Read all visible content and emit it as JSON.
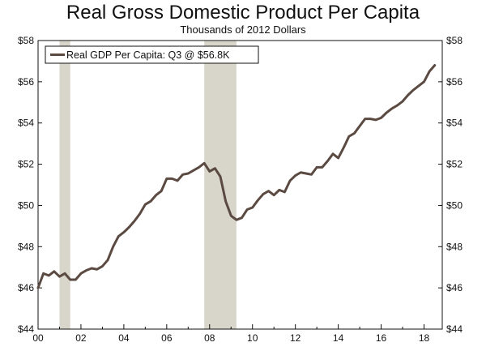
{
  "chart_data": {
    "type": "line",
    "title": "Real Gross Domestic Product Per Capita",
    "subtitle": "Thousands of 2012 Dollars",
    "xlabel": "",
    "ylabel": "",
    "xlim": [
      2000.0,
      2018.85
    ],
    "ylim": [
      44,
      58
    ],
    "x_ticks": [
      {
        "value": 2000,
        "label": "00"
      },
      {
        "value": 2002,
        "label": "02"
      },
      {
        "value": 2004,
        "label": "04"
      },
      {
        "value": 2006,
        "label": "06"
      },
      {
        "value": 2008,
        "label": "08"
      },
      {
        "value": 2010,
        "label": "10"
      },
      {
        "value": 2012,
        "label": "12"
      },
      {
        "value": 2014,
        "label": "14"
      },
      {
        "value": 2016,
        "label": "16"
      },
      {
        "value": 2018,
        "label": "18"
      }
    ],
    "y_ticks": [
      {
        "value": 44,
        "label": "$44"
      },
      {
        "value": 46,
        "label": "$46"
      },
      {
        "value": 48,
        "label": "$48"
      },
      {
        "value": 50,
        "label": "$50"
      },
      {
        "value": 52,
        "label": "$52"
      },
      {
        "value": 54,
        "label": "$54"
      },
      {
        "value": 56,
        "label": "$56"
      },
      {
        "value": 58,
        "label": "$58"
      }
    ],
    "right_axis": true,
    "grid": false,
    "legend_position": "top-left",
    "recessions": [
      {
        "start": 2001.0,
        "end": 2001.5
      },
      {
        "start": 2007.75,
        "end": 2009.25
      }
    ],
    "series": [
      {
        "name": "Real GDP Per Capita: Q3 @ $56.8K",
        "color": "#5a4a42",
        "points": [
          [
            2000.0,
            46.0
          ],
          [
            2000.25,
            46.7
          ],
          [
            2000.5,
            46.6
          ],
          [
            2000.75,
            46.8
          ],
          [
            2001.0,
            46.55
          ],
          [
            2001.25,
            46.7
          ],
          [
            2001.5,
            46.4
          ],
          [
            2001.75,
            46.4
          ],
          [
            2002.0,
            46.7
          ],
          [
            2002.25,
            46.85
          ],
          [
            2002.5,
            46.95
          ],
          [
            2002.75,
            46.9
          ],
          [
            2003.0,
            47.05
          ],
          [
            2003.25,
            47.35
          ],
          [
            2003.5,
            48.0
          ],
          [
            2003.75,
            48.5
          ],
          [
            2004.0,
            48.7
          ],
          [
            2004.25,
            48.95
          ],
          [
            2004.5,
            49.25
          ],
          [
            2004.75,
            49.6
          ],
          [
            2005.0,
            50.05
          ],
          [
            2005.25,
            50.2
          ],
          [
            2005.5,
            50.5
          ],
          [
            2005.75,
            50.7
          ],
          [
            2006.0,
            51.3
          ],
          [
            2006.25,
            51.3
          ],
          [
            2006.5,
            51.2
          ],
          [
            2006.75,
            51.5
          ],
          [
            2007.0,
            51.55
          ],
          [
            2007.25,
            51.7
          ],
          [
            2007.5,
            51.85
          ],
          [
            2007.75,
            52.05
          ],
          [
            2008.0,
            51.65
          ],
          [
            2008.25,
            51.8
          ],
          [
            2008.5,
            51.4
          ],
          [
            2008.75,
            50.2
          ],
          [
            2009.0,
            49.5
          ],
          [
            2009.25,
            49.3
          ],
          [
            2009.5,
            49.4
          ],
          [
            2009.75,
            49.8
          ],
          [
            2010.0,
            49.9
          ],
          [
            2010.25,
            50.25
          ],
          [
            2010.5,
            50.55
          ],
          [
            2010.75,
            50.7
          ],
          [
            2011.0,
            50.5
          ],
          [
            2011.25,
            50.75
          ],
          [
            2011.5,
            50.65
          ],
          [
            2011.75,
            51.2
          ],
          [
            2012.0,
            51.45
          ],
          [
            2012.25,
            51.6
          ],
          [
            2012.5,
            51.55
          ],
          [
            2012.75,
            51.5
          ],
          [
            2013.0,
            51.85
          ],
          [
            2013.25,
            51.85
          ],
          [
            2013.5,
            52.15
          ],
          [
            2013.75,
            52.5
          ],
          [
            2014.0,
            52.3
          ],
          [
            2014.25,
            52.8
          ],
          [
            2014.5,
            53.35
          ],
          [
            2014.75,
            53.5
          ],
          [
            2015.0,
            53.85
          ],
          [
            2015.25,
            54.2
          ],
          [
            2015.5,
            54.2
          ],
          [
            2015.75,
            54.15
          ],
          [
            2016.0,
            54.25
          ],
          [
            2016.25,
            54.5
          ],
          [
            2016.5,
            54.7
          ],
          [
            2016.75,
            54.85
          ],
          [
            2017.0,
            55.05
          ],
          [
            2017.25,
            55.35
          ],
          [
            2017.5,
            55.6
          ],
          [
            2017.75,
            55.8
          ],
          [
            2018.0,
            56.0
          ],
          [
            2018.25,
            56.5
          ],
          [
            2018.5,
            56.8
          ]
        ]
      }
    ]
  }
}
